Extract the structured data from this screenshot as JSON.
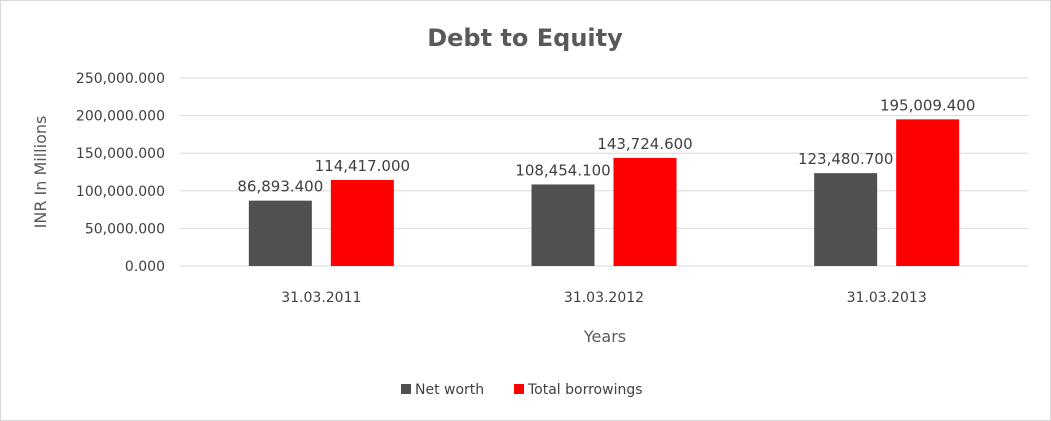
{
  "chart_data": {
    "type": "bar",
    "title": "Debt to Equity",
    "xlabel": "Years",
    "ylabel": "INR In Millions",
    "categories": [
      "31.03.2011",
      "31.03.2012",
      "31.03.2013"
    ],
    "series": [
      {
        "name": "Net worth",
        "color": "#505050",
        "values": [
          86893.4,
          108454.1,
          123480.7
        ],
        "labels": [
          "86,893.400",
          "108,454.100",
          "123,480.700"
        ]
      },
      {
        "name": "Total borrowings",
        "color": "#ff0000",
        "values": [
          114417.0,
          143724.6,
          195009.4
        ],
        "labels": [
          "114,417.000",
          "143,724.600",
          "195,009.400"
        ]
      }
    ],
    "ylim": [
      0,
      250000
    ],
    "yticks": [
      0,
      50000,
      100000,
      150000,
      200000,
      250000
    ],
    "ytick_labels": [
      "0.000",
      "50,000.000",
      "100,000.000",
      "150,000.000",
      "200,000.000",
      "250,000.000"
    ],
    "grid": true,
    "legend_position": "bottom"
  }
}
